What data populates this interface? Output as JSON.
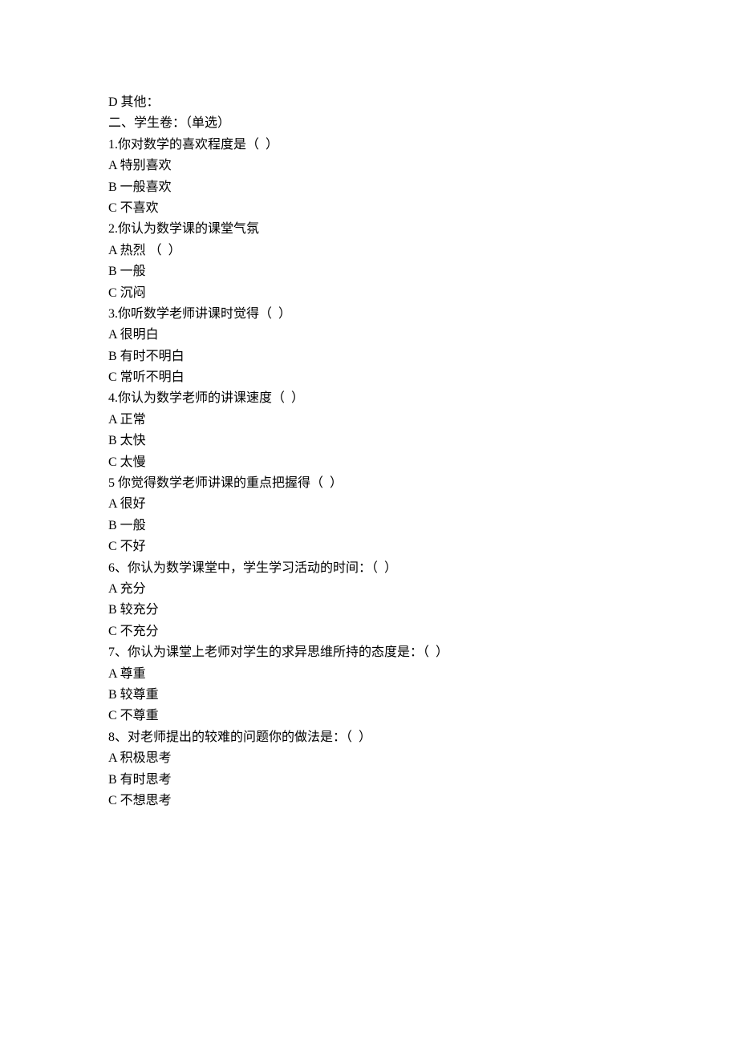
{
  "lines": [
    "D 其他：",
    "二、学生卷：（单选）",
    "1.你对数学的喜欢程度是（  ）",
    "A 特别喜欢",
    "B 一般喜欢",
    "C 不喜欢",
    "2.你认为数学课的课堂气氛",
    "A 热烈 （  ）",
    "B 一般",
    "C 沉闷",
    "3.你听数学老师讲课时觉得（  ）",
    "A 很明白",
    "B 有时不明白",
    "C 常听不明白",
    "4.你认为数学老师的讲课速度（  ）",
    "A 正常",
    "B 太快",
    "C 太慢",
    "5 你觉得数学老师讲课的重点把握得（  ）",
    "A 很好",
    "B 一般",
    "C 不好",
    "6、你认为数学课堂中，学生学习活动的时间：（  ）",
    "A 充分",
    "B 较充分",
    "C 不充分",
    "7、你认为课堂上老师对学生的求异思维所持的态度是：（  ）",
    "A 尊重",
    "B 较尊重",
    "C 不尊重",
    "8、对老师提出的较难的问题你的做法是：（  ）",
    "A 积极思考",
    "B 有时思考",
    "C 不想思考"
  ]
}
